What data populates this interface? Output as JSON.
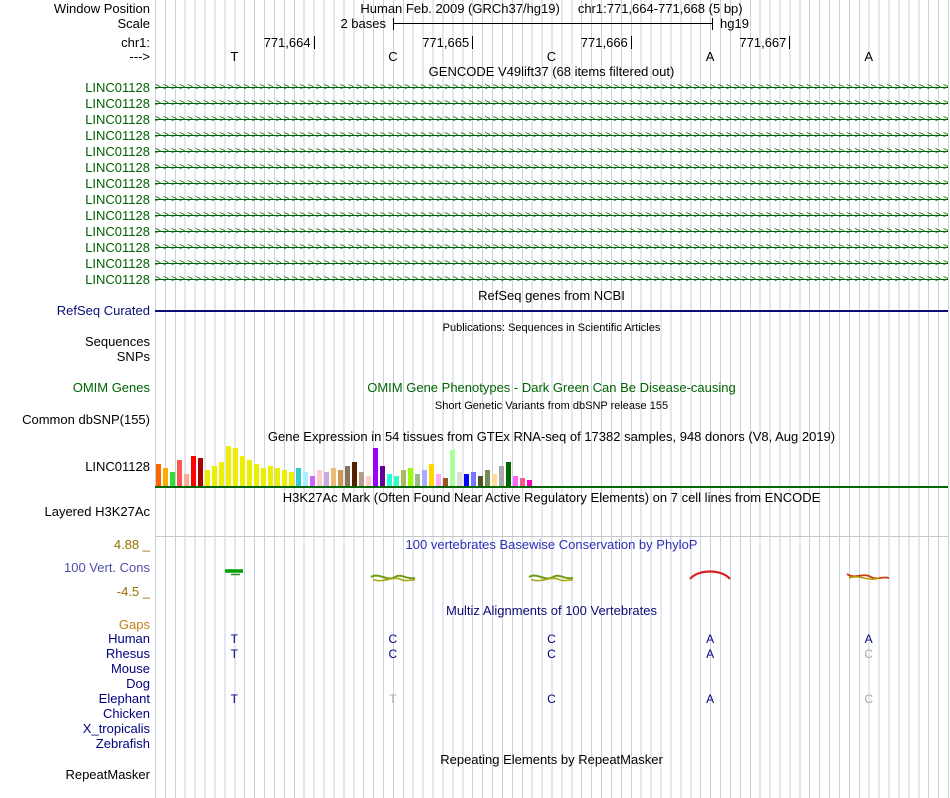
{
  "header": {
    "window_position_label": "Window Position",
    "assembly_title": "Human Feb. 2009 (GRCh37/hg19)",
    "position_title": "chr1:771,664-771,668 (5 bp)",
    "scale_label": "Scale",
    "scale_value": "2 bases",
    "assembly_short": "hg19",
    "chrom_label": "chr1:",
    "ruler_ticks": [
      "771,664",
      "771,665",
      "771,666",
      "771,667"
    ],
    "strand_label": "--->",
    "bases": [
      "T",
      "C",
      "C",
      "A",
      "A"
    ]
  },
  "tracks": {
    "gencode": {
      "title": "GENCODE V49lift37 (68 items filtered out)",
      "item_label": "LINC01128",
      "rows": 13
    },
    "refseq": {
      "title": "RefSeq genes from NCBI",
      "label": "RefSeq Curated"
    },
    "publications": {
      "title": "Publications: Sequences in Scientific Articles",
      "labels": [
        "Sequences",
        "SNPs"
      ]
    },
    "omim": {
      "title": "OMIM Gene Phenotypes - Dark Green Can Be Disease-causing",
      "label": "OMIM Genes"
    },
    "dbsnp": {
      "title": "Short Genetic Variants from dbSNP release 155",
      "label": "Common dbSNP(155)"
    },
    "gtex": {
      "title": "Gene Expression in 54 tissues from GTEx RNA-seq of 17382 samples, 948 donors (V8, Aug 2019)",
      "label": "LINC01128"
    },
    "h3k27ac": {
      "title": "H3K27Ac Mark (Often Found Near Active Regulatory Elements) on 7 cell lines from ENCODE",
      "label": "Layered H3K27Ac"
    },
    "phylop": {
      "title": "100 vertebrates Basewise Conservation by PhyloP",
      "label": "100 Vert. Cons",
      "max_label": "4.88 _",
      "min_label": "-4.5 _"
    },
    "multiz": {
      "title": "Multiz Alignments of 100 Vertebrates",
      "gaps_label": "Gaps",
      "species": [
        {
          "name": "Human",
          "bases": [
            "T",
            "C",
            "C",
            "A",
            "A"
          ],
          "gray": [
            false,
            false,
            false,
            false,
            false
          ]
        },
        {
          "name": "Rhesus",
          "bases": [
            "T",
            "C",
            "C",
            "A",
            "C"
          ],
          "gray": [
            false,
            false,
            false,
            false,
            true
          ]
        },
        {
          "name": "Mouse",
          "bases": [
            "",
            "",
            "",
            "",
            ""
          ],
          "gray": [
            false,
            false,
            false,
            false,
            false
          ]
        },
        {
          "name": "Dog",
          "bases": [
            "",
            "",
            "",
            "",
            ""
          ],
          "gray": [
            false,
            false,
            false,
            false,
            false
          ]
        },
        {
          "name": "Elephant",
          "bases": [
            "T",
            "T",
            "C",
            "A",
            "C"
          ],
          "gray": [
            false,
            true,
            false,
            false,
            true
          ]
        },
        {
          "name": "Chicken",
          "bases": [
            "",
            "",
            "",
            "",
            ""
          ],
          "gray": [
            false,
            false,
            false,
            false,
            false
          ]
        },
        {
          "name": "X_tropicalis",
          "bases": [
            "",
            "",
            "",
            "",
            ""
          ],
          "gray": [
            false,
            false,
            false,
            false,
            false
          ]
        },
        {
          "name": "Zebrafish",
          "bases": [
            "",
            "",
            "",
            "",
            ""
          ],
          "gray": [
            false,
            false,
            false,
            false,
            false
          ]
        }
      ]
    },
    "repeatmasker": {
      "title": "Repeating Elements by RepeatMasker",
      "label": "RepeatMasker"
    }
  },
  "colors": {
    "gencode_green": "#006400",
    "refseq_blue": "#0C0C78",
    "omim_green": "#006400",
    "phylop_title_blue": "#2E2EB8",
    "phylop_axis_tan": "#997000",
    "cons_label_slate": "#5050A8",
    "multiz_navy": "#000080",
    "gaps_ochre": "#C08020",
    "alignment_gray": "#A8A8A8",
    "guideline": "#C9D1DE",
    "gtex_baseline_green": "#006400"
  },
  "chart_data": {
    "type": "bar",
    "title": "Gene Expression in 54 tissues from GTEx RNA-seq of 17382 samples, 948 donors (V8, Aug 2019)",
    "gene": "LINC01128",
    "note": "GTEx tissue bars; tissue names are not displayed in the image, bar heights estimated in pixels",
    "values": [
      22,
      18,
      14,
      26,
      12,
      30,
      28,
      16,
      20,
      24,
      40,
      38,
      30,
      26,
      22,
      18,
      20,
      18,
      16,
      14,
      18,
      14,
      10,
      16,
      14,
      18,
      16,
      20,
      24,
      14,
      10,
      38,
      20,
      12,
      10,
      16,
      18,
      12,
      16,
      22,
      12,
      8,
      36,
      14,
      12,
      14,
      10,
      16,
      12,
      20,
      24,
      10,
      8,
      6
    ],
    "colors": [
      "#FF6600",
      "#FFAA00",
      "#33DD33",
      "#FF5555",
      "#FFAA99",
      "#FF0000",
      "#AA0000",
      "#EEEE00",
      "#EEEE00",
      "#EEEE00",
      "#EEEE00",
      "#EEEE00",
      "#EEEE00",
      "#EEEE00",
      "#EEEE00",
      "#EEEE00",
      "#EEEE00",
      "#EEEE00",
      "#EEEE00",
      "#EEEE00",
      "#33CCCC",
      "#AAEEFF",
      "#CC66FF",
      "#FFCCCC",
      "#CCAADD",
      "#EEBB77",
      "#CC9955",
      "#8B7355",
      "#552200",
      "#BB9988",
      "#FFCCCC",
      "#9900FF",
      "#660099",
      "#22FFDD",
      "#33FFC2",
      "#AABB66",
      "#99FF00",
      "#99BB88",
      "#AAAAFF",
      "#FFD700",
      "#FFAAFF",
      "#995522",
      "#AAFF99",
      "#DDDDDD",
      "#0000FF",
      "#7777FF",
      "#555522",
      "#778855",
      "#FFDD99",
      "#AAAAAA",
      "#006600",
      "#FF66FF",
      "#FF5599",
      "#FF00BB"
    ]
  }
}
